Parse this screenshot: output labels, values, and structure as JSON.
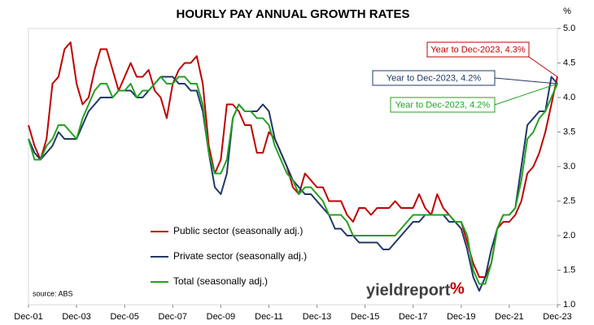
{
  "chart_data": {
    "type": "line",
    "title": "HOURLY PAY ANNUAL GROWTH RATES",
    "y_unit": "%",
    "source": "source: ABS",
    "logo_text": "yieldreport",
    "logo_symbol": "%",
    "categories": [
      "Dec-01",
      null,
      null,
      null,
      null,
      null,
      null,
      null,
      "Dec-03",
      null,
      null,
      null,
      null,
      null,
      null,
      null,
      "Dec-05",
      null,
      null,
      null,
      null,
      null,
      null,
      null,
      "Dec-07",
      null,
      null,
      null,
      null,
      null,
      null,
      null,
      "Dec-09",
      null,
      null,
      null,
      null,
      null,
      null,
      null,
      "Dec-11",
      null,
      null,
      null,
      null,
      null,
      null,
      null,
      "Dec-13",
      null,
      null,
      null,
      null,
      null,
      null,
      null,
      "Dec-15",
      null,
      null,
      null,
      null,
      null,
      null,
      null,
      "Dec-17",
      null,
      null,
      null,
      null,
      null,
      null,
      null,
      "Dec-19",
      null,
      null,
      null,
      null,
      null,
      null,
      null,
      "Dec-21",
      null,
      null,
      null,
      null,
      null,
      null,
      null,
      "Dec-23"
    ],
    "series": [
      {
        "name": "Public sector (seasonally adj.)",
        "color": "#c00000",
        "values": [
          3.6,
          3.3,
          3.1,
          3.4,
          4.2,
          4.3,
          4.7,
          4.8,
          4.2,
          3.9,
          4.0,
          4.4,
          4.7,
          4.7,
          4.4,
          4.1,
          4.3,
          4.5,
          4.3,
          4.3,
          4.4,
          4.1,
          4.0,
          3.7,
          4.2,
          4.4,
          4.5,
          4.5,
          4.6,
          4.2,
          3.3,
          2.9,
          3.1,
          3.9,
          3.9,
          3.8,
          3.6,
          3.6,
          3.2,
          3.2,
          3.5,
          3.4,
          3.2,
          3.0,
          2.7,
          2.6,
          2.9,
          2.8,
          2.7,
          2.7,
          2.5,
          2.5,
          2.5,
          2.3,
          2.2,
          2.4,
          2.4,
          2.3,
          2.4,
          2.4,
          2.4,
          2.5,
          2.4,
          2.4,
          2.4,
          2.6,
          2.4,
          2.3,
          2.6,
          2.4,
          2.3,
          2.2,
          2.2,
          1.9,
          1.6,
          1.4,
          1.4,
          1.6,
          2.1,
          2.2,
          2.2,
          2.3,
          2.5,
          2.9,
          3.0,
          3.2,
          3.5,
          3.9,
          4.3
        ]
      },
      {
        "name": "Private sector (seasonally adj.)",
        "color": "#1f3864",
        "values": [
          3.4,
          3.2,
          3.1,
          3.2,
          3.3,
          3.5,
          3.4,
          3.4,
          3.4,
          3.6,
          3.8,
          3.9,
          4.0,
          4.0,
          4.0,
          4.1,
          4.1,
          4.1,
          4.0,
          4.0,
          4.1,
          4.2,
          4.3,
          4.3,
          4.3,
          4.2,
          4.2,
          4.1,
          4.1,
          3.8,
          3.2,
          2.7,
          2.6,
          2.9,
          3.7,
          3.9,
          3.8,
          3.8,
          3.8,
          3.9,
          3.8,
          3.4,
          3.2,
          3.0,
          2.8,
          2.7,
          2.6,
          2.6,
          2.5,
          2.4,
          2.3,
          2.1,
          2.1,
          2.0,
          2.0,
          1.9,
          1.9,
          1.9,
          1.9,
          1.8,
          1.8,
          1.9,
          2.0,
          2.1,
          2.2,
          2.2,
          2.3,
          2.3,
          2.3,
          2.3,
          2.2,
          2.2,
          2.1,
          1.8,
          1.4,
          1.2,
          1.4,
          1.8,
          2.1,
          2.3,
          2.3,
          2.4,
          3.0,
          3.6,
          3.7,
          3.8,
          3.8,
          4.3,
          4.2
        ]
      },
      {
        "name": "Total (seasonally adj.)",
        "color": "#22a122",
        "values": [
          3.4,
          3.1,
          3.1,
          3.3,
          3.4,
          3.6,
          3.6,
          3.5,
          3.4,
          3.7,
          3.9,
          4.1,
          4.2,
          4.2,
          4.0,
          4.1,
          4.1,
          4.2,
          4.0,
          4.1,
          4.1,
          4.2,
          4.3,
          4.2,
          4.2,
          4.3,
          4.3,
          4.2,
          4.2,
          3.9,
          3.2,
          2.9,
          2.9,
          3.1,
          3.7,
          3.9,
          3.8,
          3.8,
          3.7,
          3.7,
          3.6,
          3.3,
          3.1,
          2.9,
          2.8,
          2.6,
          2.7,
          2.7,
          2.6,
          2.5,
          2.3,
          2.3,
          2.3,
          2.2,
          2.0,
          2.0,
          2.0,
          2.0,
          2.0,
          2.0,
          2.0,
          2.0,
          2.1,
          2.2,
          2.3,
          2.3,
          2.3,
          2.3,
          2.3,
          2.3,
          2.3,
          2.2,
          2.2,
          2.0,
          1.5,
          1.3,
          1.3,
          1.6,
          2.1,
          2.3,
          2.3,
          2.4,
          2.8,
          3.4,
          3.5,
          3.7,
          3.8,
          4.0,
          4.2
        ]
      }
    ],
    "annotations": [
      {
        "text": "Year to Dec-2023, 4.3%",
        "color": "#c00000"
      },
      {
        "text": "Year to Dec-2023, 4.2%",
        "color": "#1f3864"
      },
      {
        "text": "Year to Dec-2023, 4.2%",
        "color": "#22a122"
      }
    ],
    "ylim": [
      1,
      5
    ],
    "yticks": [
      {
        "value": 1,
        "label": "1.0"
      },
      1.5,
      {
        "value": 2,
        "label": "2.0"
      },
      2.5,
      {
        "value": 3,
        "label": "3.0"
      },
      3.5,
      {
        "value": 4,
        "label": "4.0"
      },
      4.5,
      {
        "value": 5,
        "label": "5.0"
      }
    ],
    "grid": false
  }
}
